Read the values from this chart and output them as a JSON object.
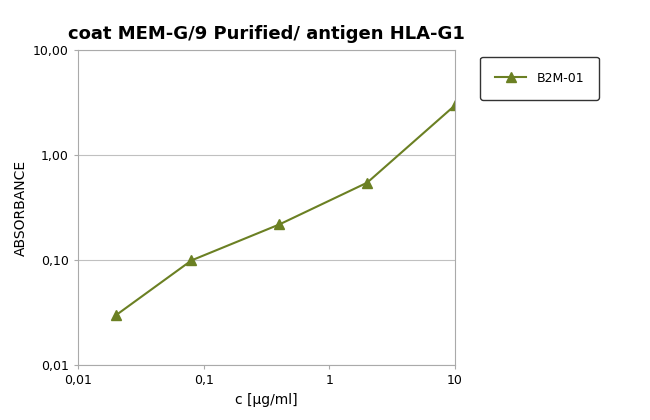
{
  "title": "coat MEM-G/9 Purified/ antigen HLA-G1",
  "xlabel": "c [µg/ml]",
  "ylabel": "ABSORBANCE",
  "x_data": [
    0.02,
    0.08,
    0.4,
    2.0,
    10.0
  ],
  "y_data": [
    0.03,
    0.1,
    0.22,
    0.55,
    3.0
  ],
  "line_color": "#6b8023",
  "marker": "^",
  "marker_size": 7,
  "label": "B2M-01",
  "x_ticks": [
    0.01,
    0.1,
    1,
    10
  ],
  "x_tick_labels": [
    "0,01",
    "0,1",
    "1",
    "10"
  ],
  "y_ticks": [
    0.01,
    0.1,
    1.0,
    10.0
  ],
  "y_tick_labels": [
    "0,01",
    "0,10",
    "1,00",
    "10,00"
  ],
  "title_fontsize": 13,
  "axis_label_fontsize": 10,
  "tick_fontsize": 9,
  "legend_fontsize": 9,
  "background_color": "#ffffff",
  "grid_color": "#c0c0c0"
}
